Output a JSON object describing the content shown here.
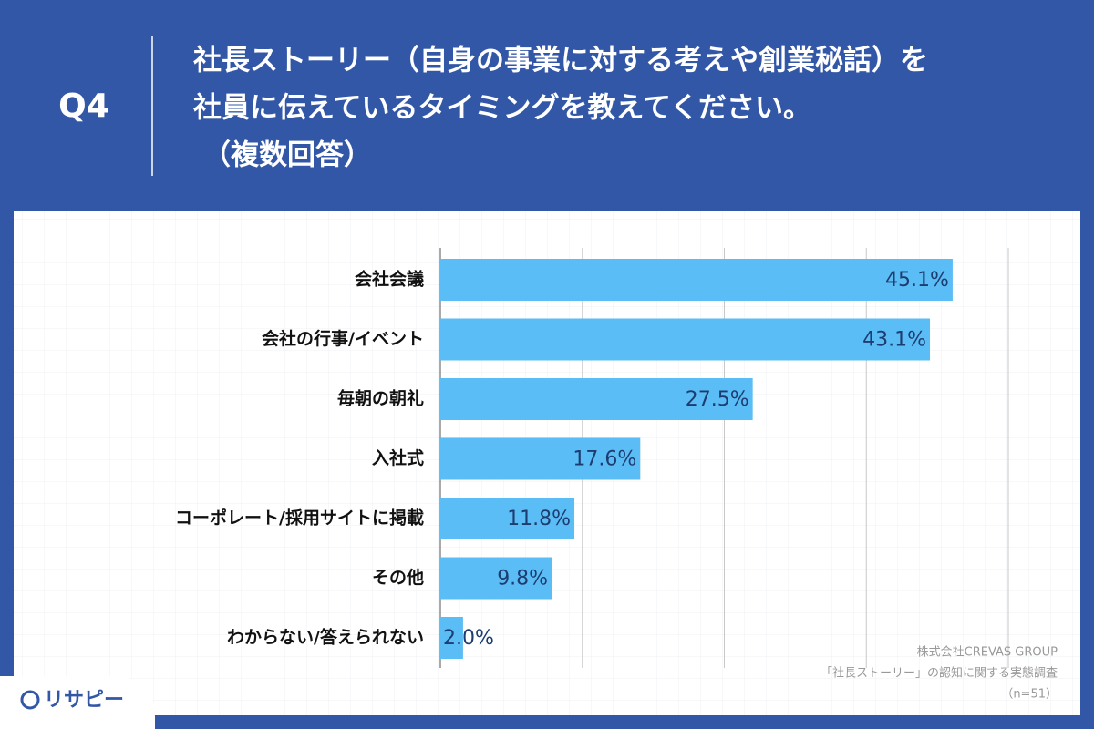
{
  "chart_data": {
    "type": "bar",
    "orientation": "horizontal",
    "question": "Q4",
    "title_lines": [
      "社長ストーリー（自身の事業に対する考えや創業秘話）を",
      "社員に伝えているタイミングを教えてください。",
      "（複数回答）"
    ],
    "categories": [
      "会社会議",
      "会社の行事/イベント",
      "毎朝の朝礼",
      "入社式",
      "コーポレート/採用サイトに掲載",
      "その他",
      "わからない/答えられない"
    ],
    "values": [
      45.1,
      43.1,
      27.5,
      17.6,
      11.8,
      9.8,
      2.0
    ],
    "value_labels": [
      "45.1%",
      "43.1%",
      "27.5%",
      "17.6%",
      "11.8%",
      "9.8%",
      "2.0%"
    ],
    "color": "#5bbdf6",
    "xlim": [
      0,
      50
    ],
    "xgrid": [
      12.5,
      25,
      37.5,
      50
    ],
    "source_lines": [
      "株式会社CREVAS GROUP",
      "「社長ストーリー」の認知に関する実態調査",
      "（n=51）"
    ],
    "logo": "リサピー"
  }
}
